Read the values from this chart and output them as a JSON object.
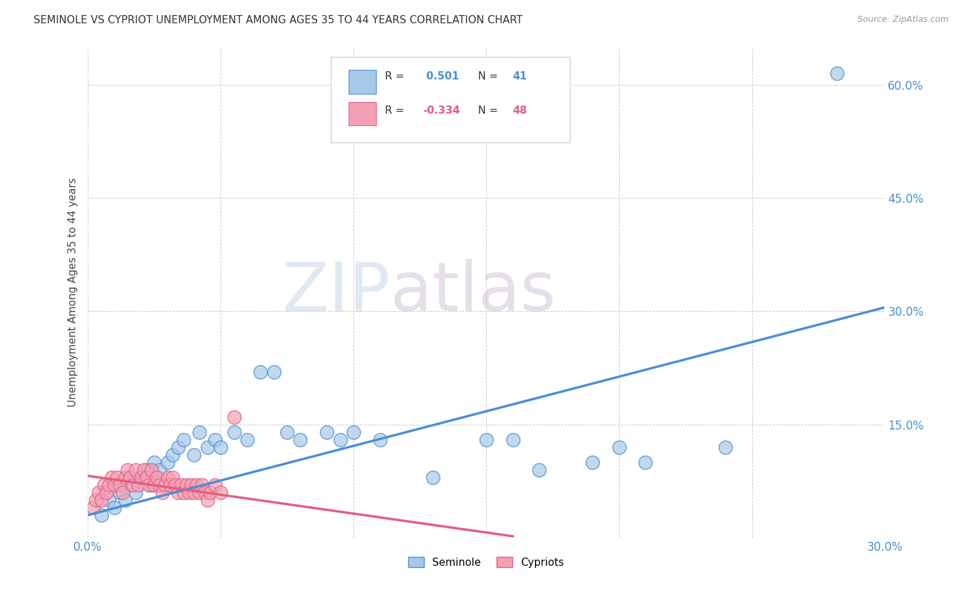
{
  "title": "SEMINOLE VS CYPRIOT UNEMPLOYMENT AMONG AGES 35 TO 44 YEARS CORRELATION CHART",
  "source": "Source: ZipAtlas.com",
  "ylabel": "Unemployment Among Ages 35 to 44 years",
  "xlim": [
    0.0,
    0.3
  ],
  "ylim": [
    0.0,
    0.65
  ],
  "x_ticks": [
    0.0,
    0.05,
    0.1,
    0.15,
    0.2,
    0.25,
    0.3
  ],
  "y_ticks": [
    0.0,
    0.15,
    0.3,
    0.45,
    0.6
  ],
  "seminole_color": "#a8c8e8",
  "cypriot_color": "#f4a0b4",
  "trendline_seminole_color": "#4a8fd4",
  "trendline_cypriot_color": "#e06080",
  "watermark_zip": "ZIP",
  "watermark_atlas": "atlas",
  "legend_R_seminole": " 0.501",
  "legend_N_seminole": "41",
  "legend_R_cypriot": "-0.334",
  "legend_N_cypriot": "48",
  "seminole_x": [
    0.005,
    0.008,
    0.01,
    0.012,
    0.014,
    0.016,
    0.018,
    0.02,
    0.022,
    0.024,
    0.025,
    0.026,
    0.027,
    0.03,
    0.032,
    0.034,
    0.036,
    0.04,
    0.042,
    0.045,
    0.048,
    0.05,
    0.055,
    0.06,
    0.065,
    0.07,
    0.075,
    0.08,
    0.09,
    0.095,
    0.1,
    0.11,
    0.13,
    0.15,
    0.16,
    0.17,
    0.19,
    0.2,
    0.21,
    0.24
  ],
  "seminole_y": [
    0.03,
    0.05,
    0.04,
    0.06,
    0.05,
    0.07,
    0.06,
    0.08,
    0.09,
    0.07,
    0.1,
    0.08,
    0.09,
    0.1,
    0.11,
    0.12,
    0.13,
    0.11,
    0.14,
    0.12,
    0.13,
    0.12,
    0.14,
    0.13,
    0.22,
    0.22,
    0.14,
    0.13,
    0.14,
    0.13,
    0.14,
    0.13,
    0.08,
    0.13,
    0.13,
    0.09,
    0.1,
    0.12,
    0.1,
    0.12
  ],
  "seminole_outlier_x": [
    0.282
  ],
  "seminole_outlier_y": [
    0.615
  ],
  "trendline_sem_x0": 0.0,
  "trendline_sem_y0": 0.03,
  "trendline_sem_x1": 0.3,
  "trendline_sem_y1": 0.305,
  "cypriot_x": [
    0.002,
    0.003,
    0.004,
    0.005,
    0.006,
    0.007,
    0.008,
    0.009,
    0.01,
    0.011,
    0.012,
    0.013,
    0.014,
    0.015,
    0.016,
    0.017,
    0.018,
    0.019,
    0.02,
    0.021,
    0.022,
    0.023,
    0.024,
    0.025,
    0.026,
    0.027,
    0.028,
    0.029,
    0.03,
    0.031,
    0.032,
    0.033,
    0.034,
    0.035,
    0.036,
    0.037,
    0.038,
    0.039,
    0.04,
    0.041,
    0.042,
    0.043,
    0.044,
    0.045,
    0.046,
    0.048,
    0.05,
    0.055
  ],
  "cypriot_y": [
    0.04,
    0.05,
    0.06,
    0.05,
    0.07,
    0.06,
    0.07,
    0.08,
    0.07,
    0.08,
    0.07,
    0.06,
    0.08,
    0.09,
    0.08,
    0.07,
    0.09,
    0.07,
    0.08,
    0.09,
    0.08,
    0.07,
    0.09,
    0.07,
    0.08,
    0.07,
    0.06,
    0.07,
    0.08,
    0.07,
    0.08,
    0.07,
    0.06,
    0.07,
    0.06,
    0.07,
    0.06,
    0.07,
    0.06,
    0.07,
    0.06,
    0.07,
    0.06,
    0.05,
    0.06,
    0.07,
    0.06,
    0.16
  ],
  "trendline_cyp_x0": 0.0,
  "trendline_cyp_y0": 0.082,
  "trendline_cyp_x1": 0.16,
  "trendline_cyp_y1": 0.002
}
